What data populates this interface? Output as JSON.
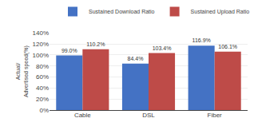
{
  "chart_data": {
    "type": "bar",
    "categories": [
      "Cable",
      "DSL",
      "Fiber"
    ],
    "series": [
      {
        "name": "Sustained Download Ratio",
        "color": "#4472C4",
        "values": [
          99.0,
          84.4,
          116.9
        ],
        "value_labels": [
          "99.0%",
          "84.4%",
          "116.9%"
        ]
      },
      {
        "name": "Sustained Upload Ratio",
        "color": "#BE4B48",
        "values": [
          110.2,
          103.4,
          106.1
        ],
        "value_labels": [
          "110.2%",
          "103.4%",
          "106.1%"
        ]
      }
    ],
    "ylabel": "Actual/\nAdvertised speed(%)",
    "ylim": [
      0,
      140
    ],
    "yticks": [
      {
        "value": 0,
        "label": "0%"
      },
      {
        "value": 20,
        "label": "20%"
      },
      {
        "value": 40,
        "label": "40%"
      },
      {
        "value": 60,
        "label": "60%"
      },
      {
        "value": 80,
        "label": "80%"
      },
      {
        "value": 100,
        "label": "100%"
      },
      {
        "value": 120,
        "label": "120%"
      },
      {
        "value": 140,
        "label": "140%"
      }
    ],
    "grid": true,
    "legend": "upper right",
    "data_labels": true
  }
}
